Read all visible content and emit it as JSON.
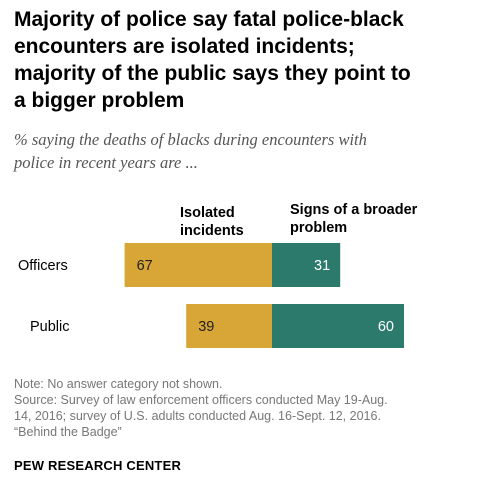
{
  "title_lines": [
    "Majority of police say fatal police-black",
    "encounters are isolated incidents;",
    "majority of the public says they point to",
    "a bigger problem"
  ],
  "subtitle_lines": [
    "% saying the deaths of blacks during encounters with",
    "police in recent years are ..."
  ],
  "colors": {
    "isolated": "#D8A637",
    "broader": "#2B7A6C"
  },
  "chart_data": {
    "type": "bar",
    "orientation": "horizontal-diverging",
    "categories": [
      "Officers",
      "Public"
    ],
    "series": [
      {
        "name": "Isolated incidents",
        "values": [
          67,
          39
        ]
      },
      {
        "name": "Signs of a broader problem",
        "values": [
          31,
          60
        ]
      }
    ],
    "column_headers": {
      "isolated": [
        "Isolated",
        "incidents"
      ],
      "broader": [
        "Signs of a broader",
        "problem"
      ]
    }
  },
  "notes": [
    "Note: No answer category not shown.",
    "Source: Survey of law enforcement officers conducted May 19-Aug.",
    "14, 2016; survey of U.S. adults conducted Aug. 16-Sept. 12, 2016.",
    "“Behind the Badge”"
  ],
  "brand": "PEW RESEARCH CENTER"
}
